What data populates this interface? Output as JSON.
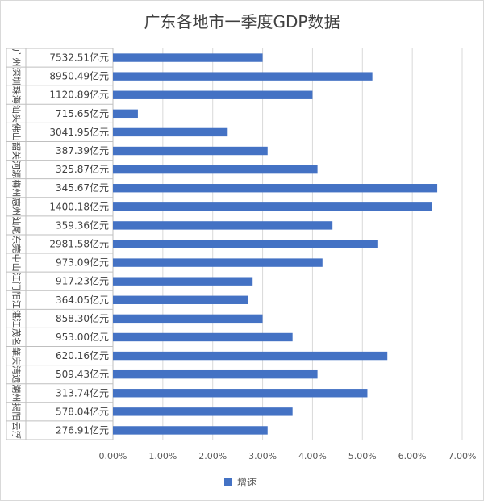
{
  "chart_data": {
    "type": "bar",
    "orientation": "horizontal",
    "title": "广东各地市一季度GDP数据",
    "categories": [
      {
        "city": "广州",
        "gdp": "7532.51亿元"
      },
      {
        "city": "深圳",
        "gdp": "8950.49亿元"
      },
      {
        "city": "珠海",
        "gdp": "1120.89亿元"
      },
      {
        "city": "汕头",
        "gdp": "715.65亿元"
      },
      {
        "city": "佛山",
        "gdp": "3041.95亿元"
      },
      {
        "city": "韶关",
        "gdp": "387.39亿元"
      },
      {
        "city": "河源",
        "gdp": "325.87亿元"
      },
      {
        "city": "梅州",
        "gdp": "345.67亿元"
      },
      {
        "city": "惠州",
        "gdp": "1400.18亿元"
      },
      {
        "city": "汕尾",
        "gdp": "359.36亿元"
      },
      {
        "city": "东莞",
        "gdp": "2981.58亿元"
      },
      {
        "city": "中山",
        "gdp": "973.09亿元"
      },
      {
        "city": "江门",
        "gdp": "917.23亿元"
      },
      {
        "city": "阳江",
        "gdp": "364.05亿元"
      },
      {
        "city": "湛江",
        "gdp": "858.30亿元"
      },
      {
        "city": "茂名",
        "gdp": "953.00亿元"
      },
      {
        "city": "肇庆",
        "gdp": "620.16亿元"
      },
      {
        "city": "清远",
        "gdp": "509.43亿元"
      },
      {
        "city": "潮州",
        "gdp": "313.74亿元"
      },
      {
        "city": "揭阳",
        "gdp": "578.04亿元"
      },
      {
        "city": "云浮",
        "gdp": "276.91亿元"
      }
    ],
    "series": [
      {
        "name": "增速",
        "color": "#4472C4",
        "values": [
          3.0,
          5.2,
          4.0,
          0.5,
          2.3,
          3.1,
          4.1,
          6.5,
          6.4,
          4.4,
          5.3,
          4.2,
          2.8,
          2.7,
          3.0,
          3.6,
          5.5,
          4.1,
          5.1,
          3.6,
          3.1
        ]
      }
    ],
    "xlim": [
      0,
      7
    ],
    "x_ticks": [
      "0.00%",
      "1.00%",
      "2.00%",
      "3.00%",
      "4.00%",
      "5.00%",
      "6.00%",
      "7.00%"
    ],
    "grid": true,
    "legend_position": "bottom"
  }
}
